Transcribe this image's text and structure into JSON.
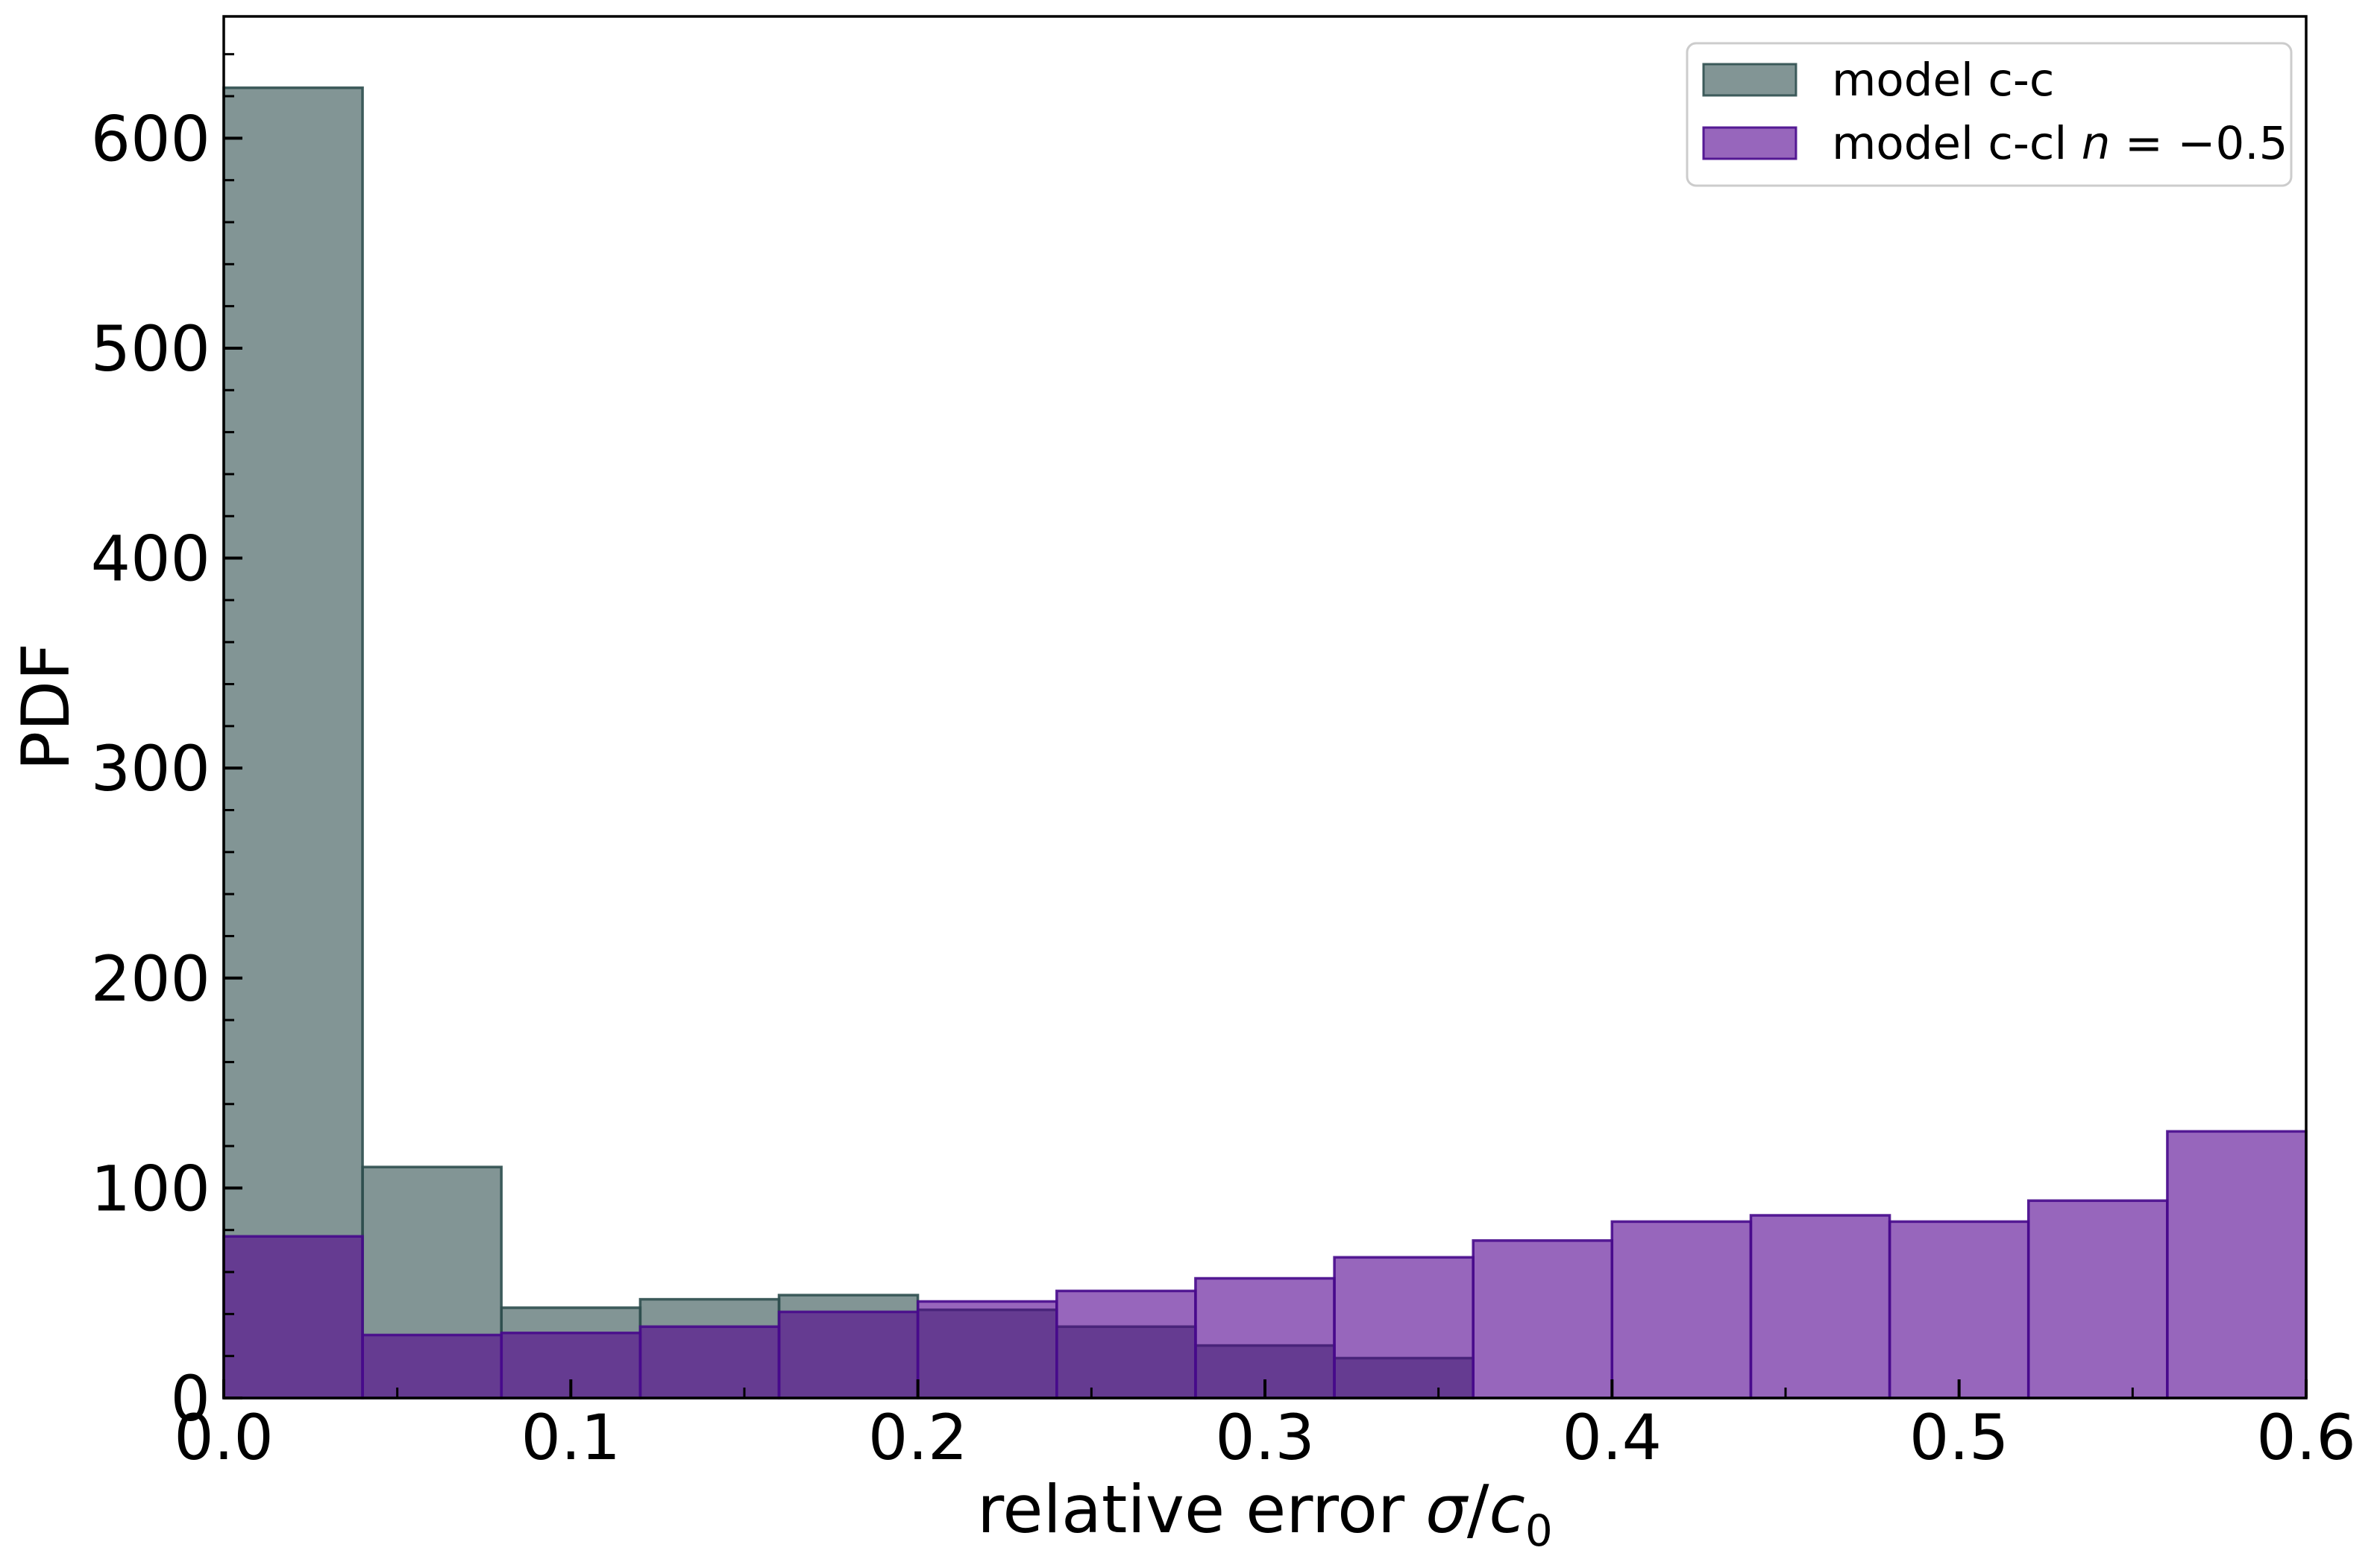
{
  "figure": {
    "background": "#ffffff",
    "spine_color": "#000000",
    "tick_color": "#000000"
  },
  "chart_data": {
    "type": "bar",
    "subtype": "overlaid-histogram",
    "title": "",
    "xlabel": "relative error σ/c₀",
    "xlabel_parts": [
      {
        "t": "relative error ",
        "style": "normal"
      },
      {
        "t": "σ",
        "style": "italic"
      },
      {
        "t": "/",
        "style": "normal"
      },
      {
        "t": "c",
        "style": "italic"
      },
      {
        "t": "0",
        "style": "sub"
      }
    ],
    "ylabel": "PDF",
    "xlim": [
      0.0,
      0.6
    ],
    "ylim": [
      0,
      658
    ],
    "grid": false,
    "bin_start": 0.0,
    "bin_width": 0.04,
    "bin_edges": [
      0.0,
      0.04,
      0.08,
      0.12,
      0.16,
      0.2,
      0.24,
      0.28,
      0.32,
      0.36,
      0.4,
      0.44,
      0.48,
      0.52,
      0.56,
      0.6
    ],
    "series": [
      {
        "name": "model c-c",
        "values": [
          624,
          110,
          43,
          47,
          49,
          42,
          34,
          25,
          19,
          0,
          0,
          0,
          0,
          0,
          0
        ],
        "face_color": "#2F4F4F",
        "face_opacity": 0.6,
        "edge_color": "#2F4F4F",
        "rendered_color_on_white": "#819492"
      },
      {
        "name": "model c-cl n = −0.5",
        "values": [
          77,
          30,
          31,
          34,
          41,
          46,
          51,
          57,
          67,
          75,
          84,
          87,
          84,
          94,
          127
        ],
        "face_color": "#51008F",
        "face_opacity": 0.6,
        "edge_color": "#470A8C",
        "rendered_color_on_white": "#9267BC",
        "rendered_color_on_gray": "#5F3A8C"
      }
    ],
    "x_ticks": [
      0.0,
      0.1,
      0.2,
      0.3,
      0.4,
      0.5,
      0.6
    ],
    "x_tick_labels": [
      "0.0",
      "0.1",
      "0.2",
      "0.3",
      "0.4",
      "0.5",
      "0.6"
    ],
    "x_minor_step": 0.05,
    "y_ticks": [
      0,
      100,
      200,
      300,
      400,
      500,
      600
    ],
    "y_tick_labels": [
      "0",
      "100",
      "200",
      "300",
      "400",
      "500",
      "600"
    ],
    "y_minor_step": 20,
    "legend_position": "upper right"
  },
  "legend": {
    "frame_color": "#cccccc",
    "frame_fill": "#ffffff",
    "items": [
      {
        "label": "model c-c",
        "parts": [
          {
            "t": "model c-c",
            "style": "normal"
          }
        ],
        "swatch_face": "#2F4F4F",
        "swatch_edge": "#2F4F4F"
      },
      {
        "label": "model c-cl n = −0.5",
        "parts": [
          {
            "t": "model c-cl ",
            "style": "normal"
          },
          {
            "t": "n",
            "style": "italic"
          },
          {
            "t": " = −0.5",
            "style": "normal"
          }
        ],
        "swatch_face": "#51008F",
        "swatch_edge": "#470A8C"
      }
    ]
  }
}
